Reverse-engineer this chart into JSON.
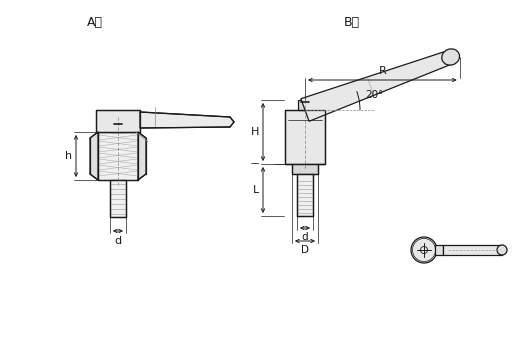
{
  "title_A": "A型",
  "title_B": "B型",
  "background_color": "#ffffff",
  "line_color": "#1a1a1a",
  "label_R": "R",
  "label_H": "H",
  "label_h": "h",
  "label_d": "d",
  "label_D": "D",
  "label_L": "L",
  "label_angle": "20°",
  "figsize": [
    5.28,
    3.42
  ],
  "dpi": 100
}
